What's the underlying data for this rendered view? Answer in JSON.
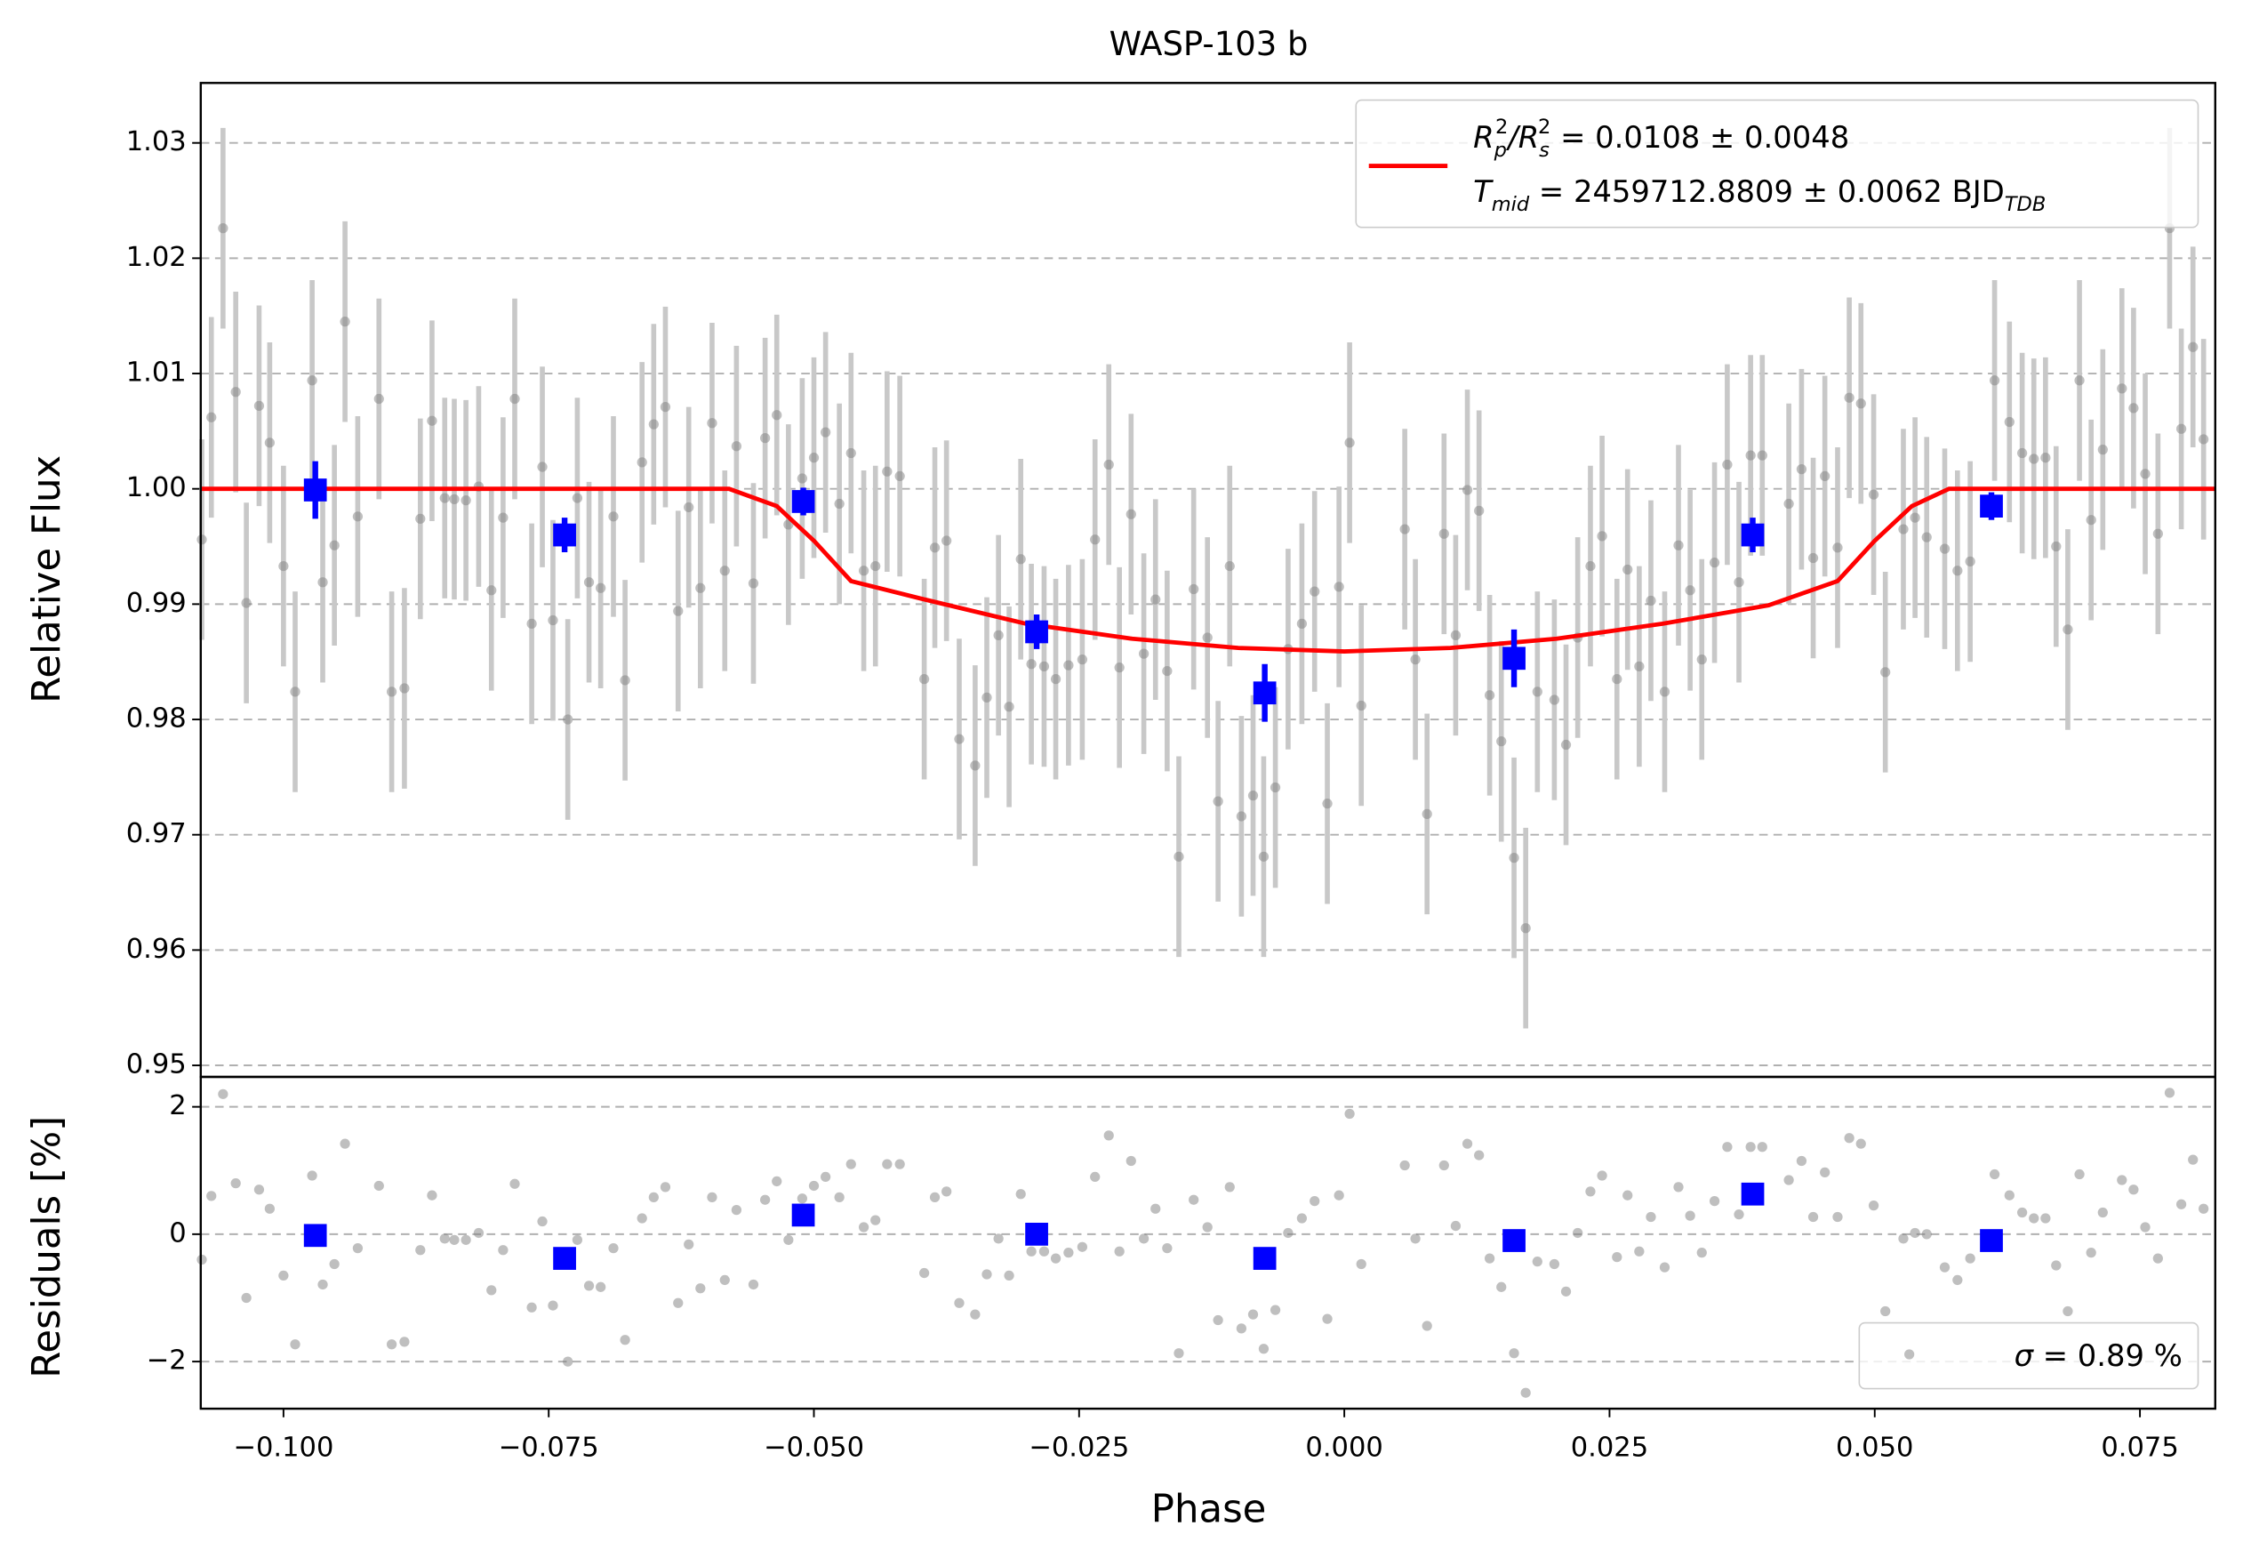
{
  "chart_data": [
    {
      "type": "scatter",
      "title": "WASP-103 b",
      "ylabel": "Relative Flux",
      "grid": true,
      "xlim": [
        -0.1078,
        0.0821
      ],
      "ylim": [
        0.949,
        1.0352
      ],
      "yticks": [
        0.95,
        0.96,
        0.97,
        0.98,
        0.99,
        {
          "value": 1,
          "label": "1.00"
        },
        1.01,
        1.02,
        1.03
      ],
      "points": {
        "color": "#808080",
        "error_color": "#c8c8c8",
        "error": 0.0087,
        "x": [
          -0.1077,
          -0.1068,
          -0.1057,
          -0.1045,
          -0.1035,
          -0.1023,
          -0.1013,
          -0.1,
          -0.0989,
          -0.0973,
          -0.0963,
          -0.0952,
          -0.0942,
          -0.093,
          -0.091,
          -0.0898,
          -0.0886,
          -0.0871,
          -0.086,
          -0.0848,
          -0.0839,
          -0.0828,
          -0.0816,
          -0.0804,
          -0.0793,
          -0.0782,
          -0.0766,
          -0.0756,
          -0.0746,
          -0.0732,
          -0.0723,
          -0.0712,
          -0.0701,
          -0.0689,
          -0.0678,
          -0.0662,
          -0.0651,
          -0.064,
          -0.0628,
          -0.0618,
          -0.0607,
          -0.0596,
          -0.0584,
          -0.0573,
          -0.0557,
          -0.0546,
          -0.0535,
          -0.0524,
          -0.0511,
          -0.05,
          -0.0489,
          -0.0476,
          -0.0465,
          -0.0453,
          -0.0442,
          -0.0431,
          -0.0419,
          -0.0396,
          -0.0386,
          -0.0375,
          -0.0363,
          -0.0348,
          -0.0337,
          -0.0326,
          -0.0316,
          -0.0305,
          -0.0295,
          -0.0283,
          -0.0272,
          -0.026,
          -0.0247,
          -0.0235,
          -0.0222,
          -0.0212,
          -0.0201,
          -0.0189,
          -0.0178,
          -0.0167,
          -0.0156,
          -0.0142,
          -0.0129,
          -0.0119,
          -0.0108,
          -0.0097,
          -0.0086,
          -0.0076,
          -0.0065,
          -0.0053,
          -0.004,
          -0.0028,
          -0.0016,
          -0.0005,
          0.0005,
          0.0016,
          0.0057,
          0.0067,
          0.0078,
          0.0094,
          0.0105,
          0.0116,
          0.0127,
          0.0137,
          0.0148,
          0.016,
          0.0171,
          0.0182,
          0.0198,
          0.0209,
          0.022,
          0.0232,
          0.0243,
          0.0257,
          0.0267,
          0.0278,
          0.0289,
          0.0302,
          0.0315,
          0.0326,
          0.0337,
          0.0349,
          0.0361,
          0.0372,
          0.0383,
          0.0394,
          0.0419,
          0.0431,
          0.0442,
          0.0453,
          0.0465,
          0.0476,
          0.0487,
          0.0499,
          0.051,
          0.0527,
          0.0538,
          0.0549,
          0.0566,
          0.0578,
          0.059,
          0.0613,
          0.0627,
          0.0639,
          0.065,
          0.0661,
          0.0671,
          0.0682,
          0.0693,
          0.0704,
          0.0715,
          0.0733,
          0.0744,
          0.0755,
          0.0767,
          0.0778,
          0.0789,
          0.08,
          0.081
        ],
        "values": [
          0.9956,
          1.0062,
          1.0226,
          1.0084,
          0.9901,
          1.0072,
          1.004,
          0.9933,
          0.9824,
          1.0094,
          0.9919,
          0.9951,
          1.0145,
          0.9976,
          1.0078,
          0.9824,
          0.9827,
          0.9974,
          1.0059,
          0.9992,
          0.9991,
          0.999,
          1.0002,
          0.9912,
          0.9975,
          1.0078,
          0.9883,
          1.0019,
          0.9886,
          0.98,
          0.9992,
          0.9919,
          0.9914,
          0.9976,
          0.9834,
          1.0023,
          1.0056,
          1.0071,
          0.9894,
          0.9984,
          0.9914,
          1.0057,
          0.9929,
          1.0037,
          0.9918,
          1.0044,
          1.0064,
          0.9969,
          1.0009,
          1.0027,
          1.0049,
          0.9987,
          1.0031,
          0.9929,
          0.9933,
          1.0015,
          1.0011,
          0.9835,
          0.9949,
          0.9955,
          0.9783,
          0.976,
          0.9819,
          0.9873,
          0.9811,
          0.9939,
          0.9848,
          0.9846,
          0.9835,
          0.9847,
          0.9852,
          0.9956,
          1.0021,
          0.9845,
          0.9978,
          0.9857,
          0.9904,
          0.9842,
          0.9681,
          0.9913,
          0.9871,
          0.9729,
          0.9933,
          0.9716,
          0.9734,
          0.9681,
          0.9741,
          0.9861,
          0.9883,
          0.9911,
          0.9727,
          0.9915,
          1.004,
          0.9812,
          0.9965,
          0.9852,
          0.9718,
          0.9961,
          0.9873,
          0.9999,
          0.9981,
          0.9821,
          0.9781,
          0.968,
          0.9619,
          0.9824,
          0.9817,
          0.9778,
          0.9871,
          0.9933,
          0.9959,
          0.9835,
          0.993,
          0.9846,
          0.9903,
          0.9824,
          0.9951,
          0.9912,
          0.9852,
          0.9936,
          1.0021,
          0.9919,
          1.0029,
          1.0029,
          0.9987,
          1.0017,
          0.994,
          1.0011,
          0.9949,
          1.0079,
          1.0074,
          0.9995,
          0.9841,
          0.9965,
          0.9975,
          0.9958,
          0.9948,
          0.9929,
          0.9937,
          1.0094,
          1.0058,
          1.0031,
          1.0026,
          1.0027,
          0.995,
          0.9878,
          1.0094,
          0.9973,
          1.0034,
          1.0087,
          1.007,
          1.0013,
          0.9961,
          1.0226,
          1.0052,
          1.0123,
          1.0043
        ]
      },
      "binned": {
        "color": "#0000ff",
        "x": [
          -0.097,
          -0.0735,
          -0.051,
          -0.029,
          -0.0075,
          0.016,
          0.0385,
          0.061
        ],
        "values": [
          0.9999,
          0.996,
          0.9989,
          0.9876,
          0.9823,
          0.9853,
          0.996,
          0.9985
        ],
        "errors": [
          0.0025,
          0.0015,
          0.0012,
          0.0015,
          0.0025,
          0.0025,
          0.0015,
          0.0012
        ]
      },
      "model": {
        "color": "#ff0000",
        "name": [
          "R",
          "p",
          "2",
          "/R",
          "s",
          "2",
          " = 0.0108 ± 0.0048"
        ],
        "name_line2": [
          "T",
          "mid",
          " = 2459712.8809 ± 0.0062 BJD",
          "TDB"
        ],
        "x": [
          -0.1078,
          -0.058,
          -0.0535,
          -0.05,
          -0.0465,
          -0.04,
          -0.03,
          -0.02,
          -0.01,
          0,
          0.01,
          0.02,
          0.03,
          0.04,
          0.0465,
          0.05,
          0.0535,
          0.057,
          0.0821
        ],
        "values": [
          1,
          1,
          0.9985,
          0.9955,
          0.992,
          0.9905,
          0.9883,
          0.987,
          0.9862,
          0.9859,
          0.9862,
          0.987,
          0.9883,
          0.9899,
          0.992,
          0.9955,
          0.9985,
          1,
          1
        ]
      }
    },
    {
      "type": "scatter",
      "xlabel": "Phase",
      "ylabel": "Residuals [%]",
      "grid": true,
      "xlim": [
        -0.1078,
        0.0821
      ],
      "ylim": [
        -2.74,
        2.47
      ],
      "xticks": [
        {
          "value": -0.1,
          "label": "−0.100"
        },
        {
          "value": -0.075,
          "label": "−0.075"
        },
        {
          "value": -0.05,
          "label": "−0.050"
        },
        {
          "value": -0.025,
          "label": "−0.025"
        },
        {
          "value": 0,
          "label": "0.000"
        },
        {
          "value": 0.025,
          "label": "0.025"
        },
        {
          "value": 0.05,
          "label": "0.050"
        },
        {
          "value": 0.075,
          "label": "0.075"
        }
      ],
      "yticks": [
        {
          "value": -2,
          "label": "−2"
        },
        0,
        2
      ],
      "legend": [
        "σ",
        " = 0.89 %"
      ],
      "points": {
        "color": "#808080",
        "values": [
          -0.4,
          0.6,
          2.2,
          0.8,
          -1.0,
          0.7,
          0.4,
          -0.65,
          -1.73,
          0.92,
          -0.79,
          -0.47,
          1.42,
          -0.22,
          0.76,
          -1.73,
          -1.69,
          -0.25,
          0.61,
          -0.07,
          -0.09,
          -0.09,
          0.02,
          -0.88,
          -0.25,
          0.79,
          -1.15,
          0.2,
          -1.12,
          -2.0,
          -0.09,
          -0.81,
          -0.83,
          -0.22,
          -1.66,
          0.25,
          0.58,
          0.74,
          -1.08,
          -0.16,
          -0.85,
          0.58,
          -0.72,
          0.38,
          -0.79,
          0.54,
          0.83,
          -0.09,
          0.56,
          0.76,
          0.9,
          0.58,
          1.1,
          0.11,
          0.22,
          1.1,
          1.1,
          -0.61,
          0.58,
          0.67,
          -1.08,
          -1.26,
          -0.63,
          -0.07,
          -0.65,
          0.63,
          -0.27,
          -0.27,
          -0.38,
          -0.29,
          -0.2,
          0.9,
          1.55,
          -0.27,
          1.15,
          -0.07,
          0.4,
          -0.22,
          -1.87,
          0.54,
          0.11,
          -1.35,
          0.74,
          -1.48,
          -1.26,
          -1.8,
          -1.19,
          0.02,
          0.25,
          0.52,
          -1.33,
          0.61,
          1.89,
          -0.47,
          1.08,
          -0.07,
          -1.44,
          1.08,
          0.13,
          1.42,
          1.24,
          -0.38,
          -0.83,
          -1.87,
          -2.49,
          -0.43,
          -0.47,
          -0.9,
          0.02,
          0.67,
          0.92,
          -0.36,
          0.61,
          -0.27,
          0.27,
          -0.52,
          0.74,
          0.29,
          -0.29,
          0.52,
          1.37,
          0.31,
          1.37,
          1.37,
          0.85,
          1.15,
          0.27,
          0.97,
          0.27,
          1.51,
          1.42,
          0.45,
          -1.21,
          -0.07,
          0.02,
          0.0,
          -0.52,
          -0.72,
          -0.38,
          0.94,
          0.61,
          0.34,
          0.25,
          0.25,
          -0.49,
          -1.21,
          0.94,
          -0.29,
          0.34,
          0.85,
          0.7,
          0.11,
          -0.38,
          2.22,
          0.47,
          1.17,
          0.4
        ]
      },
      "binned": {
        "color": "#0000ff",
        "values": [
          -0.02,
          -0.38,
          0.3,
          0.0,
          -0.38,
          -0.1,
          0.63,
          -0.1
        ]
      }
    }
  ]
}
